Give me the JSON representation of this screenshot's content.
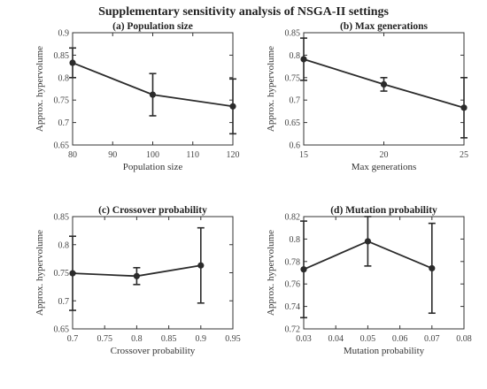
{
  "figure_title": "Supplementary sensitivity analysis of NSGA-II settings",
  "chart_data": [
    {
      "type": "line",
      "title": "(a) Population size",
      "xlabel": "Population size",
      "ylabel": "Approx. hypervolume",
      "x": [
        80,
        100,
        120
      ],
      "y": [
        0.833,
        0.762,
        0.736
      ],
      "err": [
        0.033,
        0.047,
        0.061
      ],
      "xlim": [
        80,
        120
      ],
      "ylim": [
        0.65,
        0.9
      ],
      "xticks": [
        "80",
        "90",
        "100",
        "110",
        "120"
      ],
      "yticks": [
        "0.65",
        "0.7",
        "0.75",
        "0.8",
        "0.85",
        "0.9"
      ],
      "grid": false
    },
    {
      "type": "line",
      "title": "(b) Max generations",
      "xlabel": "Max generations",
      "ylabel": "Approx. hypervolume",
      "x": [
        15,
        20,
        25
      ],
      "y": [
        0.791,
        0.735,
        0.683
      ],
      "err": [
        0.047,
        0.015,
        0.067
      ],
      "xlim": [
        15,
        25
      ],
      "ylim": [
        0.6,
        0.85
      ],
      "xticks": [
        "15",
        "20",
        "25"
      ],
      "yticks": [
        "0.6",
        "0.65",
        "0.7",
        "0.75",
        "0.8",
        "0.85"
      ],
      "grid": false
    },
    {
      "type": "line",
      "title": "(c) Crossover probability",
      "xlabel": "Crossover probability",
      "ylabel": "Approx. hypervolume",
      "x": [
        0.7,
        0.8,
        0.9
      ],
      "y": [
        0.749,
        0.744,
        0.763
      ],
      "err": [
        0.066,
        0.015,
        0.067
      ],
      "xlim": [
        0.7,
        0.95
      ],
      "ylim": [
        0.65,
        0.85
      ],
      "xticks": [
        "0.7",
        "0.75",
        "0.8",
        "0.85",
        "0.9",
        "0.95"
      ],
      "yticks": [
        "0.65",
        "0.7",
        "0.75",
        "0.8",
        "0.85"
      ],
      "grid": false
    },
    {
      "type": "line",
      "title": "(d) Mutation probability",
      "xlabel": "Mutation probability",
      "ylabel": "Approx. hypervolume",
      "x": [
        0.03,
        0.05,
        0.07
      ],
      "y": [
        0.773,
        0.798,
        0.774
      ],
      "err": [
        0.043,
        0.022,
        0.04
      ],
      "xlim": [
        0.03,
        0.08
      ],
      "ylim": [
        0.72,
        0.82
      ],
      "xticks": [
        "0.03",
        "0.04",
        "0.05",
        "0.06",
        "0.07",
        "0.08"
      ],
      "yticks": [
        "0.72",
        "0.74",
        "0.76",
        "0.78",
        "0.8",
        "0.82"
      ],
      "grid": false
    }
  ]
}
